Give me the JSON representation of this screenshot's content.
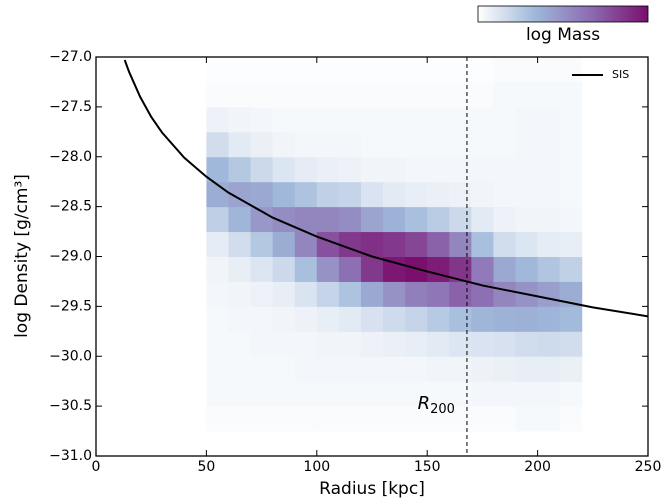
{
  "chart_data": {
    "type": "histogram2d",
    "xlabel": "Radius [kpc]",
    "ylabel": "log Density [g/cm³]",
    "xlim": [
      0,
      250
    ],
    "ylim": [
      -31.0,
      -27.0
    ],
    "xticks": [
      0,
      50,
      100,
      150,
      200,
      250
    ],
    "yticks": [
      {
        "value": -31.0,
        "label": "−31.0"
      },
      {
        "value": -30.5,
        "label": "−30.5"
      },
      {
        "value": -30.0,
        "label": "−30.0"
      },
      {
        "value": -29.5,
        "label": "−29.5"
      },
      {
        "value": -29.0,
        "label": "−29.0"
      },
      {
        "value": -28.5,
        "label": "−28.5"
      },
      {
        "value": -28.0,
        "label": "−28.0"
      },
      {
        "value": -27.5,
        "label": "−27.5"
      },
      {
        "value": -27.0,
        "label": "−27.0"
      }
    ],
    "colorbar_label": "log Mass",
    "colormap": [
      "#ffffff",
      "#9fb8da",
      "#8c6bb1",
      "#7a0f6e"
    ],
    "heatmap": {
      "x_bins": [
        50,
        60,
        70,
        80,
        90,
        100,
        110,
        120,
        130,
        140,
        150,
        160,
        170,
        180,
        190,
        200,
        210,
        220
      ],
      "y_bins": [
        -31.0,
        -30.75,
        -30.5,
        -30.25,
        -30.0,
        -29.75,
        -29.5,
        -29.25,
        -29.0,
        -28.75,
        -28.5,
        -28.25,
        -28.0,
        -27.75,
        -27.5,
        -27.25,
        -27.0
      ],
      "values": [
        [
          0,
          0.02,
          0.03,
          0.03,
          0.03,
          0.03,
          0.04,
          0.05,
          0.09,
          0.23,
          0.38,
          0.33,
          0.16,
          0.06,
          0.02,
          0.01
        ],
        [
          0,
          0.02,
          0.03,
          0.03,
          0.03,
          0.04,
          0.05,
          0.08,
          0.16,
          0.34,
          0.42,
          0.26,
          0.1,
          0.05,
          0.02,
          0.01
        ],
        [
          0,
          0.02,
          0.03,
          0.03,
          0.04,
          0.04,
          0.06,
          0.12,
          0.26,
          0.47,
          0.4,
          0.18,
          0.07,
          0.04,
          0.02,
          0.01
        ],
        [
          0,
          0.02,
          0.03,
          0.03,
          0.04,
          0.05,
          0.08,
          0.18,
          0.38,
          0.52,
          0.33,
          0.12,
          0.05,
          0.03,
          0.02,
          0.01
        ],
        [
          0,
          0.02,
          0.03,
          0.04,
          0.04,
          0.06,
          0.13,
          0.3,
          0.55,
          0.55,
          0.28,
          0.09,
          0.04,
          0.03,
          0.02,
          0.01
        ],
        [
          0,
          0.02,
          0.03,
          0.04,
          0.05,
          0.08,
          0.2,
          0.5,
          0.76,
          0.55,
          0.22,
          0.07,
          0.04,
          0.03,
          0.02,
          0.01
        ],
        [
          0,
          0.02,
          0.03,
          0.04,
          0.05,
          0.1,
          0.28,
          0.65,
          0.85,
          0.52,
          0.2,
          0.06,
          0.04,
          0.03,
          0.02,
          0.01
        ],
        [
          0,
          0.02,
          0.03,
          0.04,
          0.06,
          0.14,
          0.4,
          0.85,
          0.88,
          0.42,
          0.13,
          0.05,
          0.03,
          0.03,
          0.02,
          0.01
        ],
        [
          0,
          0.02,
          0.03,
          0.04,
          0.07,
          0.17,
          0.5,
          0.97,
          0.85,
          0.36,
          0.1,
          0.05,
          0.03,
          0.03,
          0.02,
          0.01
        ],
        [
          0,
          0.02,
          0.03,
          0.04,
          0.08,
          0.2,
          0.58,
          1,
          0.8,
          0.3,
          0.08,
          0.04,
          0.03,
          0.03,
          0.02,
          0.01
        ],
        [
          0,
          0.02,
          0.03,
          0.05,
          0.1,
          0.25,
          0.62,
          0.95,
          0.7,
          0.24,
          0.07,
          0.04,
          0.03,
          0.03,
          0.02,
          0.01
        ],
        [
          0,
          0.02,
          0.03,
          0.05,
          0.12,
          0.3,
          0.7,
          0.86,
          0.55,
          0.18,
          0.06,
          0.04,
          0.03,
          0.03,
          0.02,
          0.01
        ],
        [
          0,
          0.02,
          0.04,
          0.06,
          0.13,
          0.34,
          0.65,
          0.6,
          0.3,
          0.1,
          0.05,
          0.04,
          0.03,
          0.03,
          0.02,
          0.01
        ],
        [
          0,
          0.02,
          0.04,
          0.07,
          0.14,
          0.36,
          0.55,
          0.4,
          0.16,
          0.06,
          0.04,
          0.04,
          0.03,
          0.03,
          0.03,
          0.02
        ],
        [
          0,
          0.03,
          0.04,
          0.08,
          0.16,
          0.37,
          0.5,
          0.33,
          0.12,
          0.05,
          0.04,
          0.04,
          0.04,
          0.04,
          0.03,
          0.02
        ],
        [
          0,
          0.03,
          0.04,
          0.08,
          0.17,
          0.35,
          0.44,
          0.27,
          0.09,
          0.05,
          0.04,
          0.04,
          0.04,
          0.04,
          0.03,
          0.02
        ],
        [
          0,
          0.02,
          0.03,
          0.07,
          0.16,
          0.32,
          0.38,
          0.22,
          0.08,
          0.04,
          0.03,
          0.03,
          0.03,
          0.03,
          0.03,
          0.02
        ]
      ]
    },
    "series": [
      {
        "name": "SIS",
        "color": "#000000",
        "x": [
          13,
          15,
          20,
          25,
          30,
          40,
          50,
          60,
          80,
          100,
          125,
          150,
          175,
          200,
          225,
          250
        ],
        "values": [
          -27.03,
          -27.15,
          -27.4,
          -27.6,
          -27.76,
          -28.01,
          -28.2,
          -28.36,
          -28.61,
          -28.8,
          -29.0,
          -29.15,
          -29.29,
          -29.4,
          -29.51,
          -29.6
        ]
      }
    ],
    "vline_x": 168,
    "vline_label": "R",
    "vline_label_sub": "200",
    "legend": "upper right"
  }
}
